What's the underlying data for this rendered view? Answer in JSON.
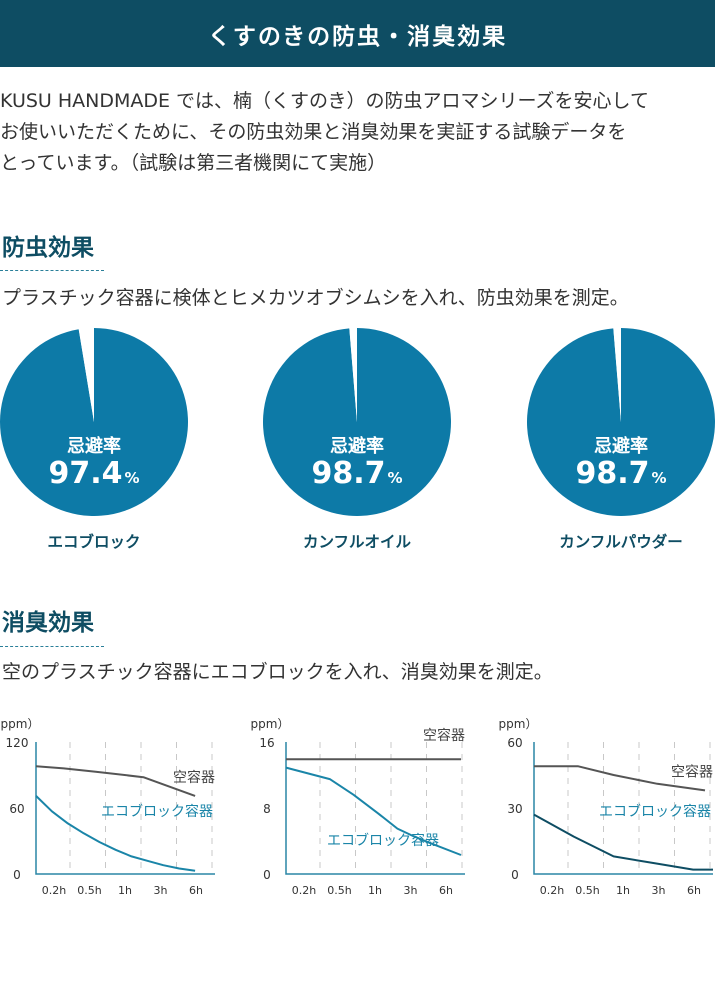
{
  "header": {
    "title": "くすのきの防虫・消臭効果"
  },
  "intro": {
    "lines": [
      "KUSU HANDMADE では、楠（くすのき）の防虫アロマシリーズを安心して",
      "お使いいただくために、その防虫効果と消臭効果を実証する試験データを",
      "とっています。（試験は第三者機関にて実施）"
    ]
  },
  "insect_section": {
    "title": "防虫効果",
    "description": "プラスチック容器に検体とヒメカツオブシムシを入れ、防虫効果を測定。"
  },
  "deodor_section": {
    "title": "消臭効果",
    "description": "空のプラスチック容器にエコブロックを入れ、消臭効果を測定。"
  },
  "chart_data": [
    {
      "type": "pie",
      "kicker": "忌避率",
      "value": 97.4,
      "value_text": "97.4",
      "unit": "%",
      "label": "エコブロック",
      "color": "#0d7aa7"
    },
    {
      "type": "pie",
      "kicker": "忌避率",
      "value": 98.7,
      "value_text": "98.7",
      "unit": "%",
      "label": "カンフルオイル",
      "color": "#0d7aa7"
    },
    {
      "type": "pie",
      "kicker": "忌避率",
      "value": 98.7,
      "value_text": "98.7",
      "unit": "%",
      "label": "カンフルパウダー",
      "color": "#0d7aa7"
    },
    {
      "type": "line",
      "ylabel": "（ppm）",
      "categories": [
        "0.2h",
        "0.5h",
        "1h",
        "3h",
        "6h"
      ],
      "yticks": [
        "120",
        "60",
        "0"
      ],
      "ylim": [
        0,
        120
      ],
      "series": [
        {
          "name": "空容器",
          "color": "#555555",
          "x": [
            0,
            0.7,
            1.5,
            2.7,
            4
          ],
          "values": [
            98,
            96,
            93,
            88,
            71
          ]
        },
        {
          "name": "エコブロック容器",
          "color": "#1a85a8",
          "x": [
            0,
            0.4,
            0.8,
            1.2,
            1.6,
            2,
            2.4,
            2.8,
            3.2,
            3.6,
            4
          ],
          "values": [
            71,
            57,
            46,
            37,
            29,
            22,
            16,
            12,
            8,
            5,
            3
          ]
        }
      ]
    },
    {
      "type": "line",
      "ylabel": "（ppm）",
      "categories": [
        "0.2h",
        "0.5h",
        "1h",
        "3h",
        "6h"
      ],
      "yticks": [
        "16",
        "8",
        "0"
      ],
      "ylim": [
        0,
        16
      ],
      "series": [
        {
          "name": "空容器",
          "color": "#555555",
          "x": [
            0,
            4.4
          ],
          "values": [
            13.9,
            13.9
          ]
        },
        {
          "name": "エコブロック容器",
          "color": "#1a85a8",
          "x": [
            0,
            1.1,
            1.7,
            2.3,
            2.8,
            3.2,
            3.6,
            4.4
          ],
          "values": [
            12.9,
            11.5,
            9.6,
            7.4,
            5.5,
            4.6,
            3.8,
            2.3
          ]
        }
      ]
    },
    {
      "type": "line",
      "ylabel": "（ppm）",
      "categories": [
        "0.2h",
        "0.5h",
        "1h",
        "3h",
        "6h"
      ],
      "yticks": [
        "60",
        "30",
        "0"
      ],
      "ylim": [
        0,
        60
      ],
      "series": [
        {
          "name": "空容器",
          "color": "#555555",
          "x": [
            0,
            1.1,
            2,
            3.1,
            4.3
          ],
          "values": [
            49,
            49,
            45,
            41,
            38
          ]
        },
        {
          "name": "エコブロック容器",
          "color": "#0e4d63",
          "x": [
            0,
            1,
            2,
            3,
            4,
            4.5
          ],
          "values": [
            27,
            17,
            8,
            5,
            2,
            2
          ]
        }
      ]
    }
  ]
}
